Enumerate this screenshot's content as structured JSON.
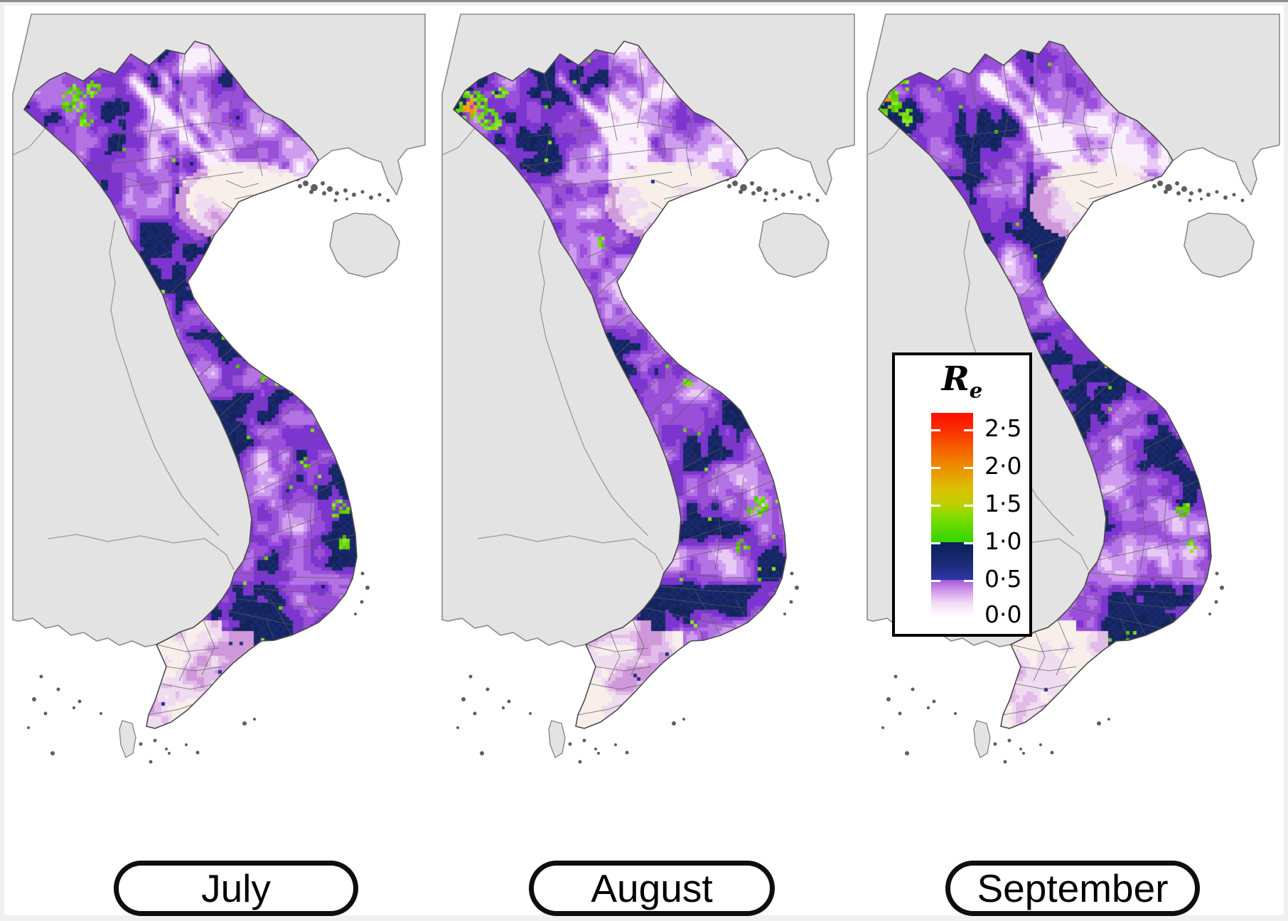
{
  "panels": [
    {
      "month": "July"
    },
    {
      "month": "August"
    },
    {
      "month": "September"
    }
  ],
  "legend": {
    "title_base": "R",
    "title_subscript": "e",
    "tick_labels": [
      "2·5",
      "2·0",
      "1·5",
      "1·0",
      "0·5",
      "0·0"
    ],
    "tick_values": [
      2.5,
      2.0,
      1.5,
      1.0,
      0.5,
      0.0
    ],
    "scale_min": 0.0,
    "scale_max": 2.72
  },
  "colors": {
    "page_background": "#f0f0f0",
    "top_border": "#8d8d8d",
    "figure_background": "#ffffff",
    "sea": "#ffffff",
    "neighbor_land": "#e3e3e3",
    "neighbor_border": "#8a8a8a",
    "neighbor_inner_border": "#9b9b9b",
    "country_border": "#4c4c4c",
    "province_border": "#5c5c5c",
    "island_gray": "#5f5f5f",
    "raster_navy_dark": "#14245f",
    "raster_navy": "#1a2a72",
    "raster_purple": "#9a4fd9",
    "raster_lavender": "#cf9def",
    "raster_pale": "#f8efea",
    "raster_green": "#7ae014",
    "raster_orange": "#ef8f12",
    "ramp_red": "#fb0f00",
    "ramp_orange": "#ee8e00",
    "ramp_yellow_green": "#bdcf00",
    "ramp_green": "#35d400",
    "ramp_navy": "#0c2058",
    "ramp_blue": "#2e36a9",
    "ramp_purple": "#9b4fd6",
    "ramp_white": "#ffffff"
  },
  "chart_data": {
    "type": "heatmap",
    "subtype": "choropleth map, small multiples",
    "region_shown": "Vietnam with neighboring countries in gray",
    "panels": [
      "July",
      "August",
      "September"
    ],
    "legend_title": "Re",
    "colorbar_ticks": [
      2.5,
      2.0,
      1.5,
      1.0,
      0.5,
      0.0
    ],
    "colorbar_range": [
      0.0,
      2.72
    ],
    "color_ramp": [
      {
        "value": 0.0,
        "color": "#ffffff"
      },
      {
        "value": 0.5,
        "color": "#9b4fd6"
      },
      {
        "value": 0.5,
        "color": "#2e36a9"
      },
      {
        "value": 1.0,
        "color": "#0c2058"
      },
      {
        "value": 1.0,
        "color": "#35d400"
      },
      {
        "value": 1.5,
        "color": "#bdcf00"
      },
      {
        "value": 2.0,
        "color": "#ee8e00"
      },
      {
        "value": 2.5,
        "color": "#fa2e00"
      },
      {
        "value": 2.72,
        "color": "#fb0f00"
      }
    ],
    "legend_position": "over third panel, upper left"
  }
}
